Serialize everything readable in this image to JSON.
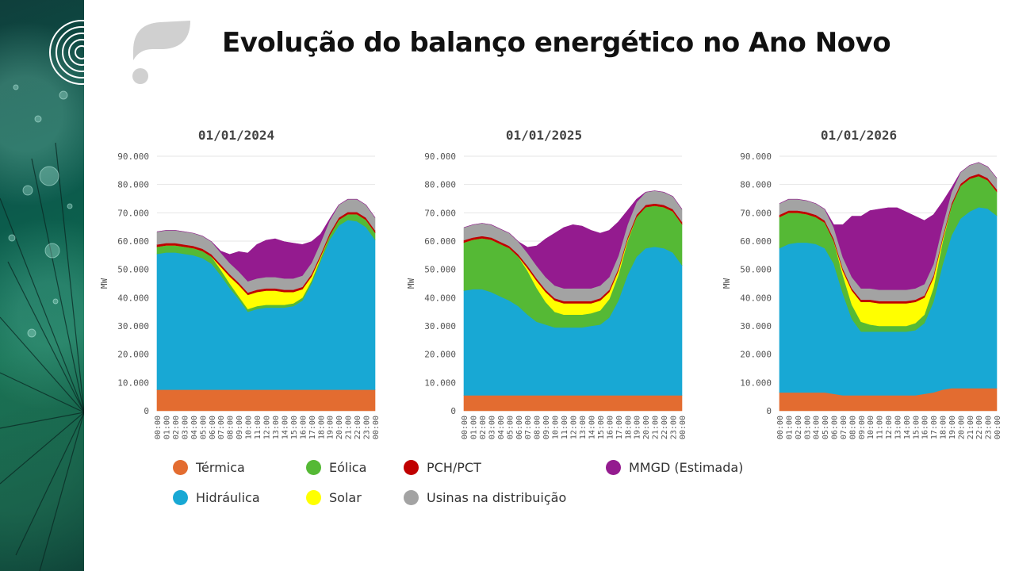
{
  "header": {
    "title": "Evolução do balanço energético no Ano Novo"
  },
  "legend": [
    {
      "label": "Térmica",
      "color": "#e36c30"
    },
    {
      "label": "Hidráulica",
      "color": "#18a8d4"
    },
    {
      "label": "Eólica",
      "color": "#55b935"
    },
    {
      "label": "Solar",
      "color": "#ffff00"
    },
    {
      "label": "PCH/PCT",
      "color": "#c00000"
    },
    {
      "label": "Usinas na distribuição",
      "color": "#a3a3a3"
    },
    {
      "label": "MMGD (Estimada)",
      "color": "#941b8f"
    }
  ],
  "chart_data": [
    {
      "type": "area",
      "title": "01/01/2024",
      "ylabel": "MW",
      "ylim": [
        0,
        90000
      ],
      "yticks": [
        "0",
        "10.000",
        "20.000",
        "30.000",
        "40.000",
        "50.000",
        "60.000",
        "70.000",
        "80.000",
        "90.000"
      ],
      "x": [
        "00:00",
        "01:00",
        "02:00",
        "03:00",
        "04:00",
        "05:00",
        "06:00",
        "07:00",
        "08:00",
        "09:00",
        "10:00",
        "11:00",
        "12:00",
        "13:00",
        "14:00",
        "15:00",
        "16:00",
        "17:00",
        "18:00",
        "19:00",
        "20:00",
        "21:00",
        "22:00",
        "23:00",
        "00:00"
      ],
      "series": [
        {
          "name": "Térmica",
          "color": "#e36c30",
          "values": [
            7500,
            7500,
            7500,
            7500,
            7500,
            7500,
            7500,
            7500,
            7500,
            7500,
            7500,
            7500,
            7500,
            7500,
            7500,
            7500,
            7500,
            7500,
            7500,
            7500,
            7500,
            7500,
            7500,
            7500,
            7500
          ]
        },
        {
          "name": "Hidráulica",
          "color": "#18a8d4",
          "values": [
            48000,
            48500,
            48500,
            48000,
            47500,
            46500,
            44500,
            40500,
            36000,
            32000,
            27500,
            28500,
            29000,
            29000,
            29000,
            29500,
            31500,
            37500,
            45500,
            53000,
            58000,
            60000,
            59500,
            57500,
            53000
          ]
        },
        {
          "name": "Eólica",
          "color": "#55b935",
          "values": [
            2500,
            2500,
            2500,
            2500,
            2500,
            2500,
            2500,
            2000,
            1500,
            1000,
            1000,
            1000,
            1000,
            1000,
            1000,
            1000,
            1000,
            1000,
            1000,
            1500,
            2000,
            2000,
            2500,
            2500,
            2500
          ]
        },
        {
          "name": "Solar",
          "color": "#ffff00",
          "values": [
            0,
            0,
            0,
            0,
            0,
            0,
            0,
            1000,
            2500,
            4000,
            5000,
            5000,
            5000,
            5000,
            4500,
            4000,
            3000,
            1500,
            500,
            0,
            0,
            0,
            0,
            0,
            0
          ]
        },
        {
          "name": "PCH/PCT",
          "color": "#c00000",
          "values": [
            800,
            800,
            800,
            800,
            800,
            800,
            800,
            800,
            800,
            800,
            800,
            800,
            800,
            800,
            800,
            800,
            800,
            800,
            800,
            800,
            800,
            800,
            800,
            800,
            800
          ]
        },
        {
          "name": "Usinas na distribuição",
          "color": "#a3a3a3",
          "values": [
            4500,
            4500,
            4500,
            4500,
            4500,
            4500,
            4500,
            4200,
            4000,
            4000,
            4000,
            4000,
            4000,
            4000,
            4000,
            4000,
            4000,
            4000,
            4200,
            4500,
            4500,
            4500,
            4500,
            4500,
            4500
          ]
        },
        {
          "name": "MMGD (Estimada)",
          "color": "#941b8f",
          "values": [
            0,
            0,
            0,
            0,
            0,
            0,
            0,
            500,
            3000,
            7000,
            10000,
            12000,
            13000,
            13500,
            13000,
            12500,
            11000,
            7500,
            3000,
            500,
            0,
            0,
            0,
            0,
            0
          ]
        }
      ]
    },
    {
      "type": "area",
      "title": "01/01/2025",
      "ylabel": "MW",
      "ylim": [
        0,
        90000
      ],
      "yticks": [
        "0",
        "10.000",
        "20.000",
        "30.000",
        "40.000",
        "50.000",
        "60.000",
        "70.000",
        "80.000",
        "90.000"
      ],
      "x": [
        "00:00",
        "01:00",
        "02:00",
        "03:00",
        "04:00",
        "05:00",
        "06:00",
        "07:00",
        "08:00",
        "09:00",
        "10:00",
        "11:00",
        "12:00",
        "13:00",
        "14:00",
        "15:00",
        "16:00",
        "17:00",
        "18:00",
        "19:00",
        "20:00",
        "21:00",
        "22:00",
        "23:00",
        "00:00"
      ],
      "series": [
        {
          "name": "Térmica",
          "color": "#e36c30",
          "values": [
            5500,
            5500,
            5500,
            5500,
            5500,
            5500,
            5500,
            5500,
            5500,
            5500,
            5500,
            5500,
            5500,
            5500,
            5500,
            5500,
            5500,
            5500,
            5500,
            5500,
            5500,
            5500,
            5500,
            5500,
            5500
          ]
        },
        {
          "name": "Hidráulica",
          "color": "#18a8d4",
          "values": [
            37000,
            37500,
            37500,
            36500,
            35000,
            33500,
            31500,
            28500,
            26000,
            25000,
            24000,
            24000,
            24000,
            24000,
            24500,
            25000,
            27500,
            33500,
            42500,
            49000,
            52000,
            52500,
            52000,
            50500,
            46000
          ]
        },
        {
          "name": "Eólica",
          "color": "#55b935",
          "values": [
            17000,
            17500,
            18000,
            18500,
            18500,
            18500,
            17500,
            15500,
            12000,
            8000,
            5500,
            4500,
            4500,
            4500,
            4500,
            5000,
            6500,
            9000,
            12000,
            14000,
            14500,
            14500,
            14500,
            14500,
            14500
          ]
        },
        {
          "name": "Solar",
          "color": "#ffff00",
          "values": [
            0,
            0,
            0,
            0,
            0,
            0,
            0,
            1000,
            2500,
            3500,
            4000,
            4000,
            4000,
            4000,
            3500,
            3500,
            2500,
            1500,
            500,
            0,
            0,
            0,
            0,
            0,
            0
          ]
        },
        {
          "name": "PCH/PCT",
          "color": "#c00000",
          "values": [
            800,
            800,
            800,
            800,
            800,
            800,
            800,
            800,
            800,
            800,
            800,
            800,
            800,
            800,
            800,
            800,
            800,
            800,
            800,
            800,
            800,
            800,
            800,
            800,
            800
          ]
        },
        {
          "name": "Usinas na distribuição",
          "color": "#a3a3a3",
          "values": [
            4500,
            4500,
            4500,
            4500,
            4500,
            4500,
            4500,
            4500,
            4500,
            4500,
            4500,
            4500,
            4500,
            4500,
            4500,
            4500,
            4500,
            4500,
            4500,
            4500,
            4500,
            4500,
            4500,
            4500,
            4500
          ]
        },
        {
          "name": "MMGD (Estimada)",
          "color": "#941b8f",
          "values": [
            0,
            0,
            0,
            0,
            0,
            0,
            0,
            2000,
            7000,
            13500,
            18500,
            21500,
            22500,
            22000,
            20500,
            18500,
            16500,
            12000,
            5000,
            1000,
            0,
            0,
            0,
            0,
            0
          ]
        }
      ]
    },
    {
      "type": "area",
      "title": "01/01/2026",
      "ylabel": "MW",
      "ylim": [
        0,
        90000
      ],
      "yticks": [
        "0",
        "10.000",
        "20.000",
        "30.000",
        "40.000",
        "50.000",
        "60.000",
        "70.000",
        "80.000",
        "90.000"
      ],
      "x": [
        "00:00",
        "01:00",
        "02:00",
        "03:00",
        "04:00",
        "05:00",
        "06:00",
        "07:00",
        "08:00",
        "09:00",
        "10:00",
        "11:00",
        "12:00",
        "13:00",
        "14:00",
        "15:00",
        "16:00",
        "17:00",
        "18:00",
        "19:00",
        "20:00",
        "21:00",
        "22:00",
        "23:00",
        "00:00"
      ],
      "series": [
        {
          "name": "Térmica",
          "color": "#e36c30",
          "values": [
            6500,
            6500,
            6500,
            6500,
            6500,
            6500,
            6000,
            5500,
            5500,
            5500,
            5500,
            5500,
            5500,
            5500,
            5500,
            5500,
            6000,
            6500,
            7500,
            8000,
            8000,
            8000,
            8000,
            8000,
            8000
          ]
        },
        {
          "name": "Hidráulica",
          "color": "#18a8d4",
          "values": [
            51000,
            52500,
            53000,
            53000,
            52500,
            51000,
            46000,
            36000,
            27000,
            22500,
            22500,
            22500,
            22500,
            22500,
            22500,
            23000,
            25000,
            32000,
            44000,
            54000,
            60000,
            62500,
            64000,
            63500,
            61000
          ]
        },
        {
          "name": "Eólica",
          "color": "#55b935",
          "values": [
            11000,
            11000,
            10500,
            10000,
            9500,
            9000,
            8000,
            6500,
            5000,
            3500,
            2500,
            2000,
            2000,
            2000,
            2000,
            2500,
            3000,
            5000,
            8000,
            10500,
            11500,
            11500,
            11000,
            10000,
            8500
          ]
        },
        {
          "name": "Solar",
          "color": "#ffff00",
          "values": [
            0,
            0,
            0,
            0,
            0,
            0,
            0,
            1500,
            5000,
            7000,
            8000,
            8000,
            8000,
            8000,
            8000,
            7500,
            6000,
            3500,
            1000,
            0,
            0,
            0,
            0,
            0,
            0
          ]
        },
        {
          "name": "PCH/PCT",
          "color": "#c00000",
          "values": [
            800,
            800,
            800,
            800,
            800,
            800,
            800,
            800,
            800,
            800,
            800,
            800,
            800,
            800,
            800,
            800,
            800,
            800,
            800,
            800,
            800,
            800,
            800,
            800,
            800
          ]
        },
        {
          "name": "Usinas na distribuição",
          "color": "#a3a3a3",
          "values": [
            4000,
            4000,
            4000,
            4000,
            4000,
            4000,
            4000,
            4000,
            4000,
            4000,
            4000,
            4000,
            4000,
            4000,
            4000,
            4000,
            4000,
            4000,
            4000,
            4000,
            4000,
            4000,
            4000,
            4000,
            4000
          ]
        },
        {
          "name": "MMGD (Estimada)",
          "color": "#941b8f",
          "values": [
            0,
            0,
            0,
            0,
            0,
            0,
            1000,
            11500,
            21500,
            25500,
            27500,
            28500,
            29000,
            29000,
            27500,
            25500,
            22500,
            17500,
            8500,
            1500,
            0,
            0,
            0,
            0,
            0
          ]
        }
      ]
    }
  ]
}
